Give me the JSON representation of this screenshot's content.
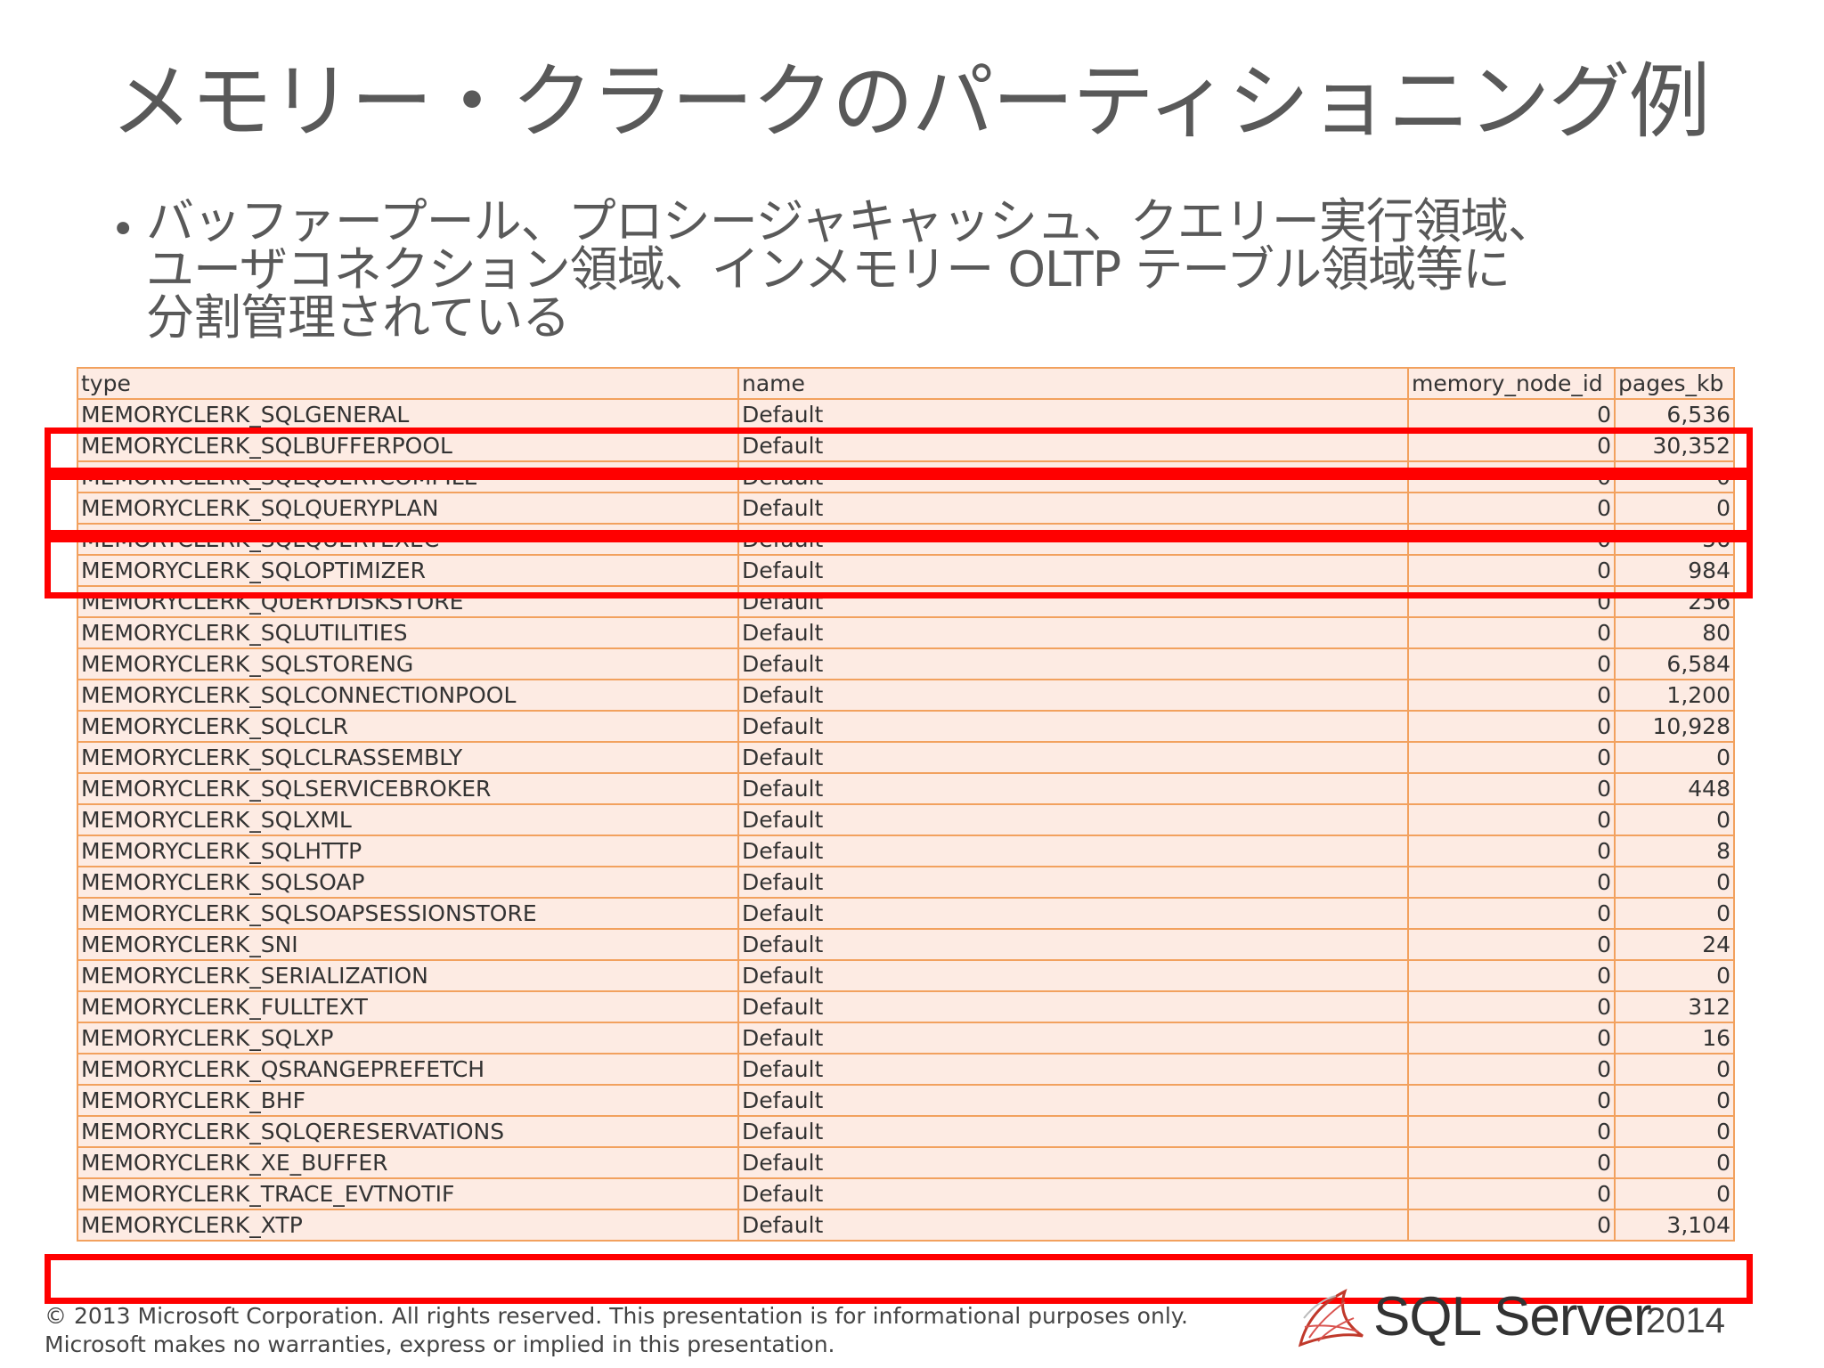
{
  "slide": {
    "title": "メモリー・クラークのパーティショニング例",
    "bullet_lines": [
      "バッファープール、プロシージャキャッシュ、クエリー実行領域、",
      "ユーザコネクション領域、インメモリー OLTP テーブル領域等に",
      "分割管理されている"
    ]
  },
  "table": {
    "headers": [
      "type",
      "name",
      "memory_node_id",
      "pages_kb"
    ],
    "rows": [
      [
        "MEMORYCLERK_SQLGENERAL",
        "Default",
        "0",
        "6,536"
      ],
      [
        "MEMORYCLERK_SQLBUFFERPOOL",
        "Default",
        "0",
        "30,352"
      ],
      [
        "MEMORYCLERK_SQLQUERYCOMPILE",
        "Default",
        "0",
        "0"
      ],
      [
        "MEMORYCLERK_SQLQUERYPLAN",
        "Default",
        "0",
        "0"
      ],
      [
        "MEMORYCLERK_SQLQUERYEXEC",
        "Default",
        "0",
        "56"
      ],
      [
        "MEMORYCLERK_SQLOPTIMIZER",
        "Default",
        "0",
        "984"
      ],
      [
        "MEMORYCLERK_QUERYDISKSTORE",
        "Default",
        "0",
        "256"
      ],
      [
        "MEMORYCLERK_SQLUTILITIES",
        "Default",
        "0",
        "80"
      ],
      [
        "MEMORYCLERK_SQLSTORENG",
        "Default",
        "0",
        "6,584"
      ],
      [
        "MEMORYCLERK_SQLCONNECTIONPOOL",
        "Default",
        "0",
        "1,200"
      ],
      [
        "MEMORYCLERK_SQLCLR",
        "Default",
        "0",
        "10,928"
      ],
      [
        "MEMORYCLERK_SQLCLRASSEMBLY",
        "Default",
        "0",
        "0"
      ],
      [
        "MEMORYCLERK_SQLSERVICEBROKER",
        "Default",
        "0",
        "448"
      ],
      [
        "MEMORYCLERK_SQLXML",
        "Default",
        "0",
        "0"
      ],
      [
        "MEMORYCLERK_SQLHTTP",
        "Default",
        "0",
        "8"
      ],
      [
        "MEMORYCLERK_SQLSOAP",
        "Default",
        "0",
        "0"
      ],
      [
        "MEMORYCLERK_SQLSOAPSESSIONSTORE",
        "Default",
        "0",
        "0"
      ],
      [
        "MEMORYCLERK_SNI",
        "Default",
        "0",
        "24"
      ],
      [
        "MEMORYCLERK_SERIALIZATION",
        "Default",
        "0",
        "0"
      ],
      [
        "MEMORYCLERK_FULLTEXT",
        "Default",
        "0",
        "312"
      ],
      [
        "MEMORYCLERK_SQLXP",
        "Default",
        "0",
        "16"
      ],
      [
        "MEMORYCLERK_QSRANGEPREFETCH",
        "Default",
        "0",
        "0"
      ],
      [
        "MEMORYCLERK_BHF",
        "Default",
        "0",
        "0"
      ],
      [
        "MEMORYCLERK_SQLQERESERVATIONS",
        "Default",
        "0",
        "0"
      ],
      [
        "MEMORYCLERK_XE_BUFFER",
        "Default",
        "0",
        "0"
      ],
      [
        "MEMORYCLERK_TRACE_EVTNOTIF",
        "Default",
        "0",
        "0"
      ],
      [
        "MEMORYCLERK_XTP",
        "Default",
        "0",
        "3,104"
      ]
    ],
    "highlight_color": "#ff0000",
    "border_color": "#f2a15e",
    "cell_background": "#fdebe3"
  },
  "footer": {
    "lines": [
      "© 2013 Microsoft Corporation.  All rights reserved.  This presentation is for informational purposes only.",
      "Microsoft makes no warranties, express or implied in this presentation."
    ]
  },
  "logo": {
    "text": "SQL Server",
    "year": "2014"
  }
}
